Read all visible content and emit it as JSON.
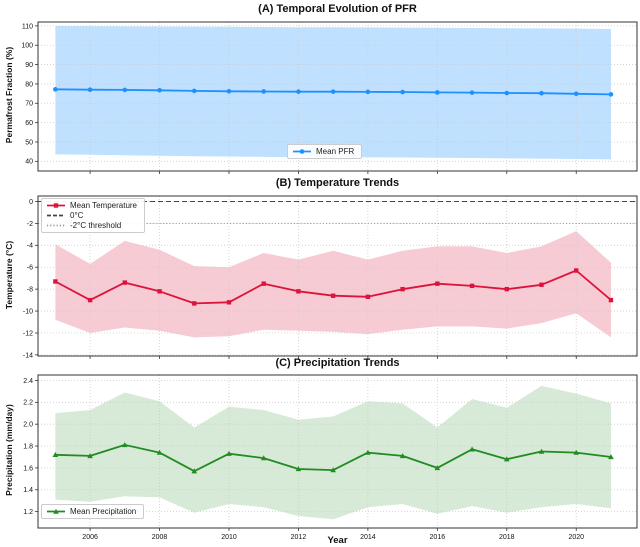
{
  "figure": {
    "xlabel": "Year",
    "background": "#ffffff",
    "years": [
      2005,
      2006,
      2007,
      2008,
      2009,
      2010,
      2011,
      2012,
      2013,
      2014,
      2015,
      2016,
      2017,
      2018,
      2019,
      2020,
      2021
    ],
    "x_ticks": [
      2006,
      2008,
      2010,
      2012,
      2014,
      2016,
      2018,
      2020
    ],
    "x_tick_labels": [
      "2006",
      "2008",
      "2010",
      "2012",
      "2014",
      "2016",
      "2018",
      "2020"
    ],
    "xlim": [
      2004.5,
      2021.75
    ]
  },
  "chart_data": [
    {
      "id": "pfr",
      "type": "line",
      "title": "(A) Temporal Evolution of PFR",
      "ylabel": "Permafrost Fraction (%)",
      "x": [
        2005,
        2006,
        2007,
        2008,
        2009,
        2010,
        2011,
        2012,
        2013,
        2014,
        2015,
        2016,
        2017,
        2018,
        2019,
        2020,
        2021
      ],
      "series": [
        {
          "name": "Mean PFR",
          "values": [
            77.2,
            77.0,
            76.9,
            76.7,
            76.4,
            76.2,
            76.1,
            76.0,
            76.0,
            75.9,
            75.8,
            75.6,
            75.5,
            75.3,
            75.2,
            74.9,
            74.6
          ]
        }
      ],
      "band": {
        "upper": [
          110.0,
          109.9,
          109.8,
          109.7,
          109.6,
          109.5,
          109.4,
          109.3,
          109.3,
          109.2,
          109.1,
          109.0,
          108.9,
          108.8,
          108.7,
          108.6,
          108.4
        ],
        "lower": [
          43.6,
          43.4,
          43.1,
          42.9,
          42.6,
          42.5,
          42.3,
          42.2,
          42.2,
          42.1,
          42.0,
          41.8,
          41.7,
          41.5,
          41.4,
          41.2,
          41.0
        ]
      },
      "ylim": [
        35,
        112
      ],
      "yticks": [
        110,
        100,
        90,
        80,
        70,
        60,
        50,
        40
      ],
      "ytick_labels": [
        "110",
        "100",
        "90",
        "80",
        "70",
        "60",
        "50",
        "40"
      ],
      "color": "#1e90ff",
      "band_opacity": 0.28,
      "marker": "circle",
      "grid": true,
      "legend": {
        "position": "bottom-center",
        "entries": [
          {
            "label": "Mean PFR",
            "swatch": "line",
            "marker": "circle",
            "color": "#1e90ff"
          }
        ]
      }
    },
    {
      "id": "temperature",
      "type": "line",
      "title": "(B) Temperature Trends",
      "ylabel": "Temperature (°C)",
      "x": [
        2005,
        2006,
        2007,
        2008,
        2009,
        2010,
        2011,
        2012,
        2013,
        2014,
        2015,
        2016,
        2017,
        2018,
        2019,
        2020,
        2021
      ],
      "series": [
        {
          "name": "Mean Temperature",
          "values": [
            -7.3,
            -9.0,
            -7.4,
            -8.2,
            -9.3,
            -9.2,
            -7.5,
            -8.2,
            -8.6,
            -8.7,
            -8.0,
            -7.5,
            -7.7,
            -8.0,
            -7.6,
            -6.3,
            -9.0
          ]
        }
      ],
      "band": {
        "upper": [
          -3.9,
          -5.7,
          -3.6,
          -4.4,
          -5.9,
          -6.0,
          -4.7,
          -5.3,
          -4.5,
          -5.3,
          -4.5,
          -4.1,
          -4.1,
          -4.7,
          -4.1,
          -2.7,
          -5.6
        ],
        "lower": [
          -10.8,
          -12.0,
          -11.5,
          -11.8,
          -12.4,
          -12.3,
          -11.7,
          -11.8,
          -11.9,
          -12.1,
          -11.7,
          -11.4,
          -11.4,
          -11.6,
          -11.1,
          -10.2,
          -12.4
        ]
      },
      "ylim": [
        -14.1,
        0.5
      ],
      "yticks": [
        0,
        -2,
        -4,
        -6,
        -8,
        -10,
        -12,
        -14
      ],
      "ytick_labels": [
        "0",
        "-2",
        "-4",
        "-6",
        "-8",
        "-10",
        "-12",
        "-14"
      ],
      "color": "#dc143c",
      "band_opacity": 0.22,
      "marker": "square",
      "grid": true,
      "ref_lines": [
        {
          "label": "0°C",
          "value": 0,
          "style": "dashed",
          "color": "#444444"
        },
        {
          "label": "-2°C threshold",
          "value": -2,
          "style": "dotted",
          "color": "#999999"
        }
      ],
      "legend": {
        "position": "top-left",
        "entries": [
          {
            "label": "Mean Temperature",
            "swatch": "line",
            "marker": "square",
            "color": "#dc143c"
          },
          {
            "label": "0°C",
            "swatch": "dashed",
            "color": "#444444"
          },
          {
            "label": "-2°C threshold",
            "swatch": "dotted",
            "color": "#999999"
          }
        ]
      }
    },
    {
      "id": "precipitation",
      "type": "line",
      "title": "(C) Precipitation Trends",
      "ylabel": "Precipitation (mm/day)",
      "x": [
        2005,
        2006,
        2007,
        2008,
        2009,
        2010,
        2011,
        2012,
        2013,
        2014,
        2015,
        2016,
        2017,
        2018,
        2019,
        2020,
        2021
      ],
      "series": [
        {
          "name": "Mean Precipitation",
          "values": [
            1.72,
            1.71,
            1.81,
            1.74,
            1.57,
            1.73,
            1.69,
            1.59,
            1.58,
            1.74,
            1.71,
            1.6,
            1.77,
            1.68,
            1.75,
            1.74,
            1.7
          ]
        }
      ],
      "band": {
        "upper": [
          2.1,
          2.13,
          2.29,
          2.21,
          1.97,
          2.16,
          2.13,
          2.04,
          2.07,
          2.21,
          2.19,
          1.97,
          2.23,
          2.15,
          2.35,
          2.28,
          2.19
        ],
        "lower": [
          1.31,
          1.29,
          1.34,
          1.33,
          1.19,
          1.27,
          1.24,
          1.16,
          1.13,
          1.24,
          1.27,
          1.18,
          1.25,
          1.19,
          1.24,
          1.27,
          1.23
        ]
      },
      "ylim": [
        1.05,
        2.45
      ],
      "yticks": [
        2.4,
        2.2,
        2.0,
        1.8,
        1.6,
        1.4,
        1.2
      ],
      "ytick_labels": [
        "2.4",
        "2.2",
        "2.0",
        "1.8",
        "1.6",
        "1.4",
        "1.2"
      ],
      "color": "#228b22",
      "band_opacity": 0.18,
      "marker": "triangle",
      "grid": true,
      "legend": {
        "position": "bottom-left",
        "entries": [
          {
            "label": "Mean Precipitation",
            "swatch": "line",
            "marker": "triangle",
            "color": "#228b22"
          }
        ]
      }
    }
  ]
}
